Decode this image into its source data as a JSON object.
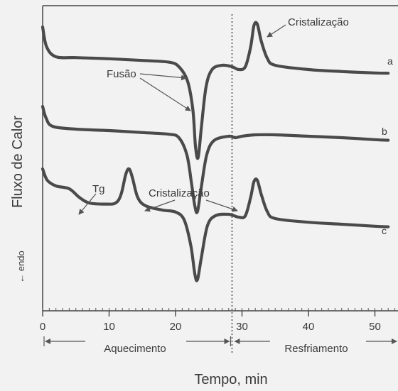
{
  "chart_data": {
    "type": "line",
    "title": "",
    "xlabel": "Tempo, min",
    "ylabel": "Fluxo de Calor",
    "y_direction_note": "← endo",
    "x_ticks": [
      0,
      10,
      20,
      30,
      40,
      50
    ],
    "xlim": [
      0,
      52
    ],
    "grid": false,
    "regions": [
      {
        "label": "Aquecimento",
        "from": 0,
        "to": 28.5
      },
      {
        "label": "Resfriamento",
        "from": 28.5,
        "to": 52
      }
    ],
    "divider_x": 28.5,
    "series": [
      {
        "name": "a",
        "points": [
          [
            0,
            0.95
          ],
          [
            0.6,
            0.88
          ],
          [
            2,
            0.845
          ],
          [
            5,
            0.842
          ],
          [
            10,
            0.838
          ],
          [
            15,
            0.832
          ],
          [
            19,
            0.826
          ],
          [
            20.5,
            0.81
          ],
          [
            21.8,
            0.76
          ],
          [
            22.6,
            0.66
          ],
          [
            23,
            0.53
          ],
          [
            23.4,
            0.49
          ],
          [
            23.9,
            0.6
          ],
          [
            24.6,
            0.74
          ],
          [
            25.5,
            0.8
          ],
          [
            27,
            0.815
          ],
          [
            28.5,
            0.81
          ],
          [
            29.5,
            0.8
          ],
          [
            30.5,
            0.81
          ],
          [
            31.3,
            0.88
          ],
          [
            31.8,
            0.955
          ],
          [
            32.3,
            0.96
          ],
          [
            32.9,
            0.9
          ],
          [
            33.8,
            0.84
          ],
          [
            35,
            0.815
          ],
          [
            40,
            0.8
          ],
          [
            45,
            0.793
          ],
          [
            50,
            0.788
          ],
          [
            52,
            0.787
          ]
        ]
      },
      {
        "name": "b",
        "points": [
          [
            0,
            0.67
          ],
          [
            0.5,
            0.63
          ],
          [
            1.5,
            0.6
          ],
          [
            5,
            0.59
          ],
          [
            10,
            0.585
          ],
          [
            15,
            0.578
          ],
          [
            19,
            0.572
          ],
          [
            20.5,
            0.56
          ],
          [
            21.7,
            0.5
          ],
          [
            22.4,
            0.4
          ],
          [
            22.9,
            0.32
          ],
          [
            23.3,
            0.3
          ],
          [
            23.9,
            0.39
          ],
          [
            24.7,
            0.5
          ],
          [
            25.8,
            0.55
          ],
          [
            28,
            0.565
          ],
          [
            29,
            0.56
          ],
          [
            30,
            0.565
          ],
          [
            32,
            0.57
          ],
          [
            35,
            0.57
          ],
          [
            40,
            0.565
          ],
          [
            45,
            0.56
          ],
          [
            50,
            0.553
          ],
          [
            52,
            0.551
          ]
        ]
      },
      {
        "name": "c",
        "points": [
          [
            0,
            0.45
          ],
          [
            0.7,
            0.41
          ],
          [
            2,
            0.39
          ],
          [
            4,
            0.38
          ],
          [
            5.5,
            0.35
          ],
          [
            7,
            0.33
          ],
          [
            9.5,
            0.326
          ],
          [
            11,
            0.33
          ],
          [
            11.8,
            0.36
          ],
          [
            12.5,
            0.43
          ],
          [
            13,
            0.45
          ],
          [
            13.5,
            0.42
          ],
          [
            14.3,
            0.35
          ],
          [
            15.5,
            0.32
          ],
          [
            18,
            0.305
          ],
          [
            20,
            0.298
          ],
          [
            21.3,
            0.27
          ],
          [
            22.3,
            0.18
          ],
          [
            22.9,
            0.08
          ],
          [
            23.3,
            0.06
          ],
          [
            23.9,
            0.14
          ],
          [
            24.8,
            0.25
          ],
          [
            26,
            0.285
          ],
          [
            28,
            0.29
          ],
          [
            29.5,
            0.28
          ],
          [
            30.5,
            0.285
          ],
          [
            31.3,
            0.35
          ],
          [
            31.8,
            0.405
          ],
          [
            32.3,
            0.41
          ],
          [
            32.9,
            0.36
          ],
          [
            33.8,
            0.3
          ],
          [
            35,
            0.275
          ],
          [
            40,
            0.262
          ],
          [
            45,
            0.255
          ],
          [
            50,
            0.248
          ],
          [
            52,
            0.246
          ]
        ]
      }
    ],
    "annotations": [
      {
        "text": "Cristalização"
      },
      {
        "text": "Fusão"
      },
      {
        "text": "Tg"
      },
      {
        "text": "Cristalização"
      }
    ]
  }
}
